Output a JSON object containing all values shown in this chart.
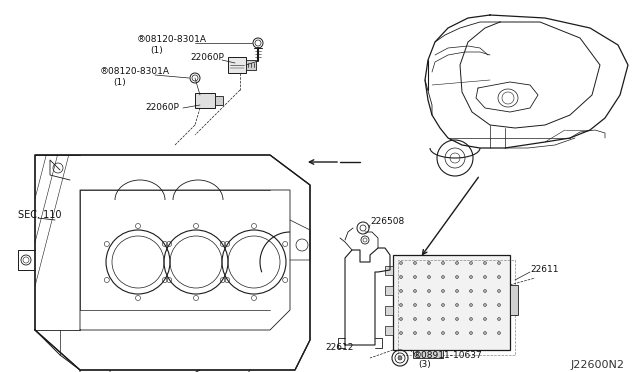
{
  "background_color": "#ffffff",
  "diagram_code": "J22600N2",
  "line_color": "#1a1a1a",
  "text_color": "#111111",
  "font_size": 6.5,
  "labels": {
    "sec110": "SEC. 110",
    "bolt1": "®08120-8301A",
    "bolt1b": "(1)",
    "bolt2": "®08120-8301A",
    "bolt2b": "(1)",
    "sensor1": "22060P",
    "sensor2": "22060P",
    "part226508": "226508",
    "part22611": "22611",
    "part22612": "22612",
    "bolt3": "®08911-10637",
    "bolt3b": "(3)"
  }
}
